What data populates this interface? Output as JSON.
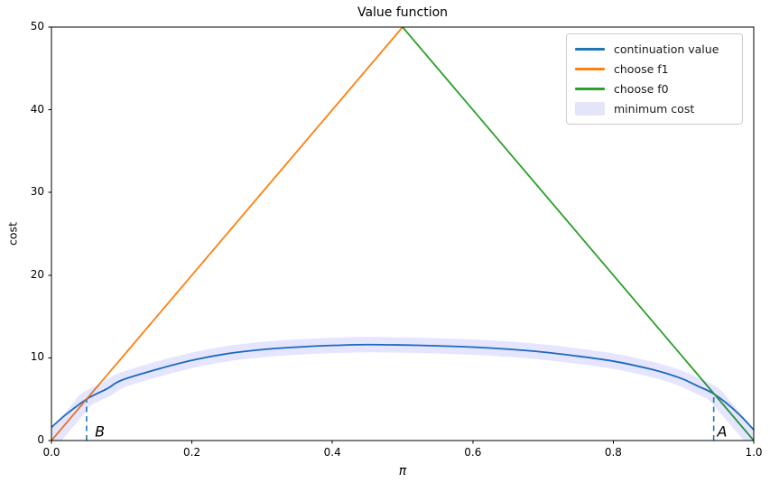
{
  "figure": {
    "title": "Value function",
    "xlabel": "π",
    "ylabel": "cost"
  },
  "legend": {
    "items": [
      {
        "label": "continuation value",
        "kind": "line",
        "color": "#1f77b4"
      },
      {
        "label": "choose f1",
        "kind": "line",
        "color": "#ff7f0e"
      },
      {
        "label": "choose f0",
        "kind": "line",
        "color": "#2ca02c"
      },
      {
        "label": "minimum cost",
        "kind": "band",
        "color": "#e5e5fa"
      }
    ]
  },
  "chart_data": {
    "type": "line",
    "title": "Value function",
    "xlabel": "π",
    "ylabel": "cost",
    "xlim": [
      0.0,
      1.0
    ],
    "ylim": [
      0,
      50
    ],
    "grid": false,
    "legend_position": "upper right",
    "x_tick_values": [
      0.0,
      0.2,
      0.4,
      0.6,
      0.8,
      1.0
    ],
    "x_tick_labels": [
      "0.0",
      "0.2",
      "0.4",
      "0.6",
      "0.8",
      "1.0"
    ],
    "y_tick_values": [
      0,
      10,
      20,
      30,
      40,
      50
    ],
    "y_tick_labels": [
      "0",
      "10",
      "20",
      "30",
      "40",
      "50"
    ],
    "series": [
      {
        "name": "continuation value",
        "kind": "line",
        "color": "#1f77b4",
        "width": 1.8,
        "x": [
          0.0,
          0.02,
          0.05,
          0.08,
          0.1,
          0.15,
          0.2,
          0.25,
          0.3,
          0.35,
          0.4,
          0.45,
          0.5,
          0.55,
          0.6,
          0.65,
          0.7,
          0.75,
          0.8,
          0.85,
          0.88,
          0.9,
          0.92,
          0.94,
          0.96,
          0.98,
          1.0
        ],
        "y": [
          1.6,
          3.1,
          5.0,
          6.3,
          7.3,
          8.6,
          9.7,
          10.5,
          11.0,
          11.3,
          11.5,
          11.6,
          11.55,
          11.45,
          11.3,
          11.05,
          10.7,
          10.2,
          9.6,
          8.7,
          8.0,
          7.4,
          6.6,
          5.8,
          4.6,
          3.1,
          1.3
        ]
      },
      {
        "name": "choose f1",
        "kind": "line",
        "color": "#ff7f0e",
        "width": 1.8,
        "x": [
          0.0,
          0.5
        ],
        "y": [
          0,
          50
        ]
      },
      {
        "name": "choose f0",
        "kind": "line",
        "color": "#2ca02c",
        "width": 1.8,
        "x": [
          0.5,
          1.0
        ],
        "y": [
          50,
          0
        ]
      },
      {
        "name": "minimum cost",
        "kind": "band",
        "color": "rgba(0,0,255,0.10)",
        "width": 17,
        "x": [
          0.0,
          0.01,
          0.02,
          0.03,
          0.04,
          0.05,
          0.08,
          0.1,
          0.15,
          0.2,
          0.25,
          0.3,
          0.35,
          0.4,
          0.45,
          0.5,
          0.55,
          0.6,
          0.65,
          0.7,
          0.75,
          0.8,
          0.85,
          0.88,
          0.9,
          0.92,
          0.94,
          0.95,
          0.96,
          0.97,
          0.98,
          0.99,
          1.0
        ],
        "y": [
          0,
          1,
          2,
          3,
          4,
          5.0,
          6.3,
          7.3,
          8.6,
          9.7,
          10.5,
          11.0,
          11.3,
          11.5,
          11.6,
          11.55,
          11.45,
          11.3,
          11.05,
          10.7,
          10.2,
          9.6,
          8.7,
          8.0,
          7.4,
          6.6,
          5.8,
          5.0,
          4.0,
          3.0,
          2.0,
          1.0,
          0
        ]
      }
    ],
    "vlines": [
      {
        "name": "B-threshold",
        "x": 0.05,
        "y0": 0,
        "y1": 5.0,
        "color": "#1f77b4",
        "dashed": true
      },
      {
        "name": "A-threshold",
        "x": 0.943,
        "y0": 0,
        "y1": 5.75,
        "color": "#1f77b4",
        "dashed": true
      }
    ],
    "annotations": [
      {
        "text": "B",
        "x": 0.069,
        "y": 1.1
      },
      {
        "text": "A",
        "x": 0.955,
        "y": 1.1
      }
    ]
  }
}
